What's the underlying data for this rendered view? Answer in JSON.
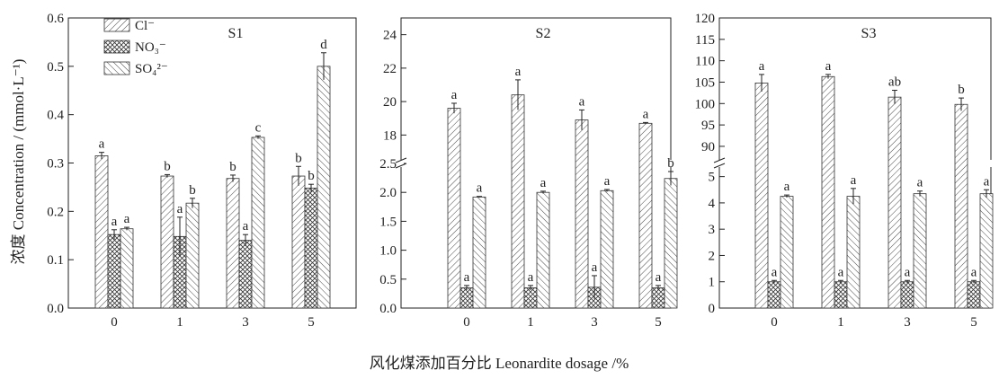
{
  "figure": {
    "ylabel": "浓度 Concentration / (mmol·L⁻¹)",
    "xlabel": "风化煤添加百分比 Leonardite dosage /%",
    "legend": [
      "Cl⁻",
      "NO₃⁻",
      "SO₄²⁻"
    ]
  },
  "chart_data": [
    {
      "type": "bar",
      "title": "S1",
      "categories": [
        "0",
        "1",
        "3",
        "5"
      ],
      "ylim": [
        0,
        0.6
      ],
      "yticks": [
        "0.0",
        "0.1",
        "0.2",
        "0.3",
        "0.4",
        "0.5",
        "0.6"
      ],
      "legend_position": "top-left",
      "series": [
        {
          "name": "Cl⁻",
          "values": [
            0.315,
            0.273,
            0.268,
            0.273
          ],
          "errors": [
            0.007,
            0.003,
            0.007,
            0.02
          ],
          "letters": [
            "a",
            "b",
            "b",
            "b"
          ]
        },
        {
          "name": "NO₃⁻",
          "values": [
            0.152,
            0.148,
            0.14,
            0.248
          ],
          "errors": [
            0.01,
            0.04,
            0.012,
            0.008
          ],
          "letters": [
            "a",
            "a",
            "a",
            "b"
          ]
        },
        {
          "name": "SO₄²⁻",
          "values": [
            0.164,
            0.217,
            0.353,
            0.5
          ],
          "errors": [
            0.003,
            0.01,
            0.003,
            0.028
          ],
          "letters": [
            "a",
            "b",
            "c",
            "d"
          ]
        }
      ]
    },
    {
      "type": "bar",
      "title": "S2",
      "categories": [
        "0",
        "1",
        "3",
        "5"
      ],
      "axis_break": {
        "lower": [
          0,
          2.5
        ],
        "upper": [
          16.3,
          25
        ]
      },
      "yticks_lower": [
        "0.0",
        "0.5",
        "1.0",
        "1.5",
        "2.0",
        "2.5"
      ],
      "yticks_upper": [
        "18",
        "20",
        "22",
        "24"
      ],
      "series": [
        {
          "name": "Cl⁻",
          "values": [
            19.6,
            20.4,
            18.9,
            18.7
          ],
          "errors": [
            0.3,
            0.9,
            0.6,
            0.05
          ],
          "letters": [
            "a",
            "a",
            "a",
            "a"
          ]
        },
        {
          "name": "NO₃⁻",
          "values": [
            0.35,
            0.35,
            0.36,
            0.35
          ],
          "errors": [
            0.04,
            0.04,
            0.2,
            0.04
          ],
          "letters": [
            "a",
            "a",
            "a",
            "a"
          ]
        },
        {
          "name": "SO₄²⁻",
          "values": [
            1.92,
            2.0,
            2.03,
            2.24
          ],
          "errors": [
            0.01,
            0.02,
            0.02,
            0.12
          ],
          "letters": [
            "a",
            "a",
            "a",
            "b"
          ]
        }
      ]
    },
    {
      "type": "bar",
      "title": "S3",
      "categories": [
        "0",
        "1",
        "3",
        "5"
      ],
      "axis_break": {
        "lower": [
          0,
          5.5
        ],
        "upper": [
          86,
          120
        ]
      },
      "yticks_lower": [
        "0",
        "1",
        "2",
        "3",
        "4",
        "5"
      ],
      "yticks_upper": [
        "90",
        "95",
        "100",
        "105",
        "110",
        "115",
        "120"
      ],
      "series": [
        {
          "name": "Cl⁻",
          "values": [
            104.8,
            106.3,
            101.5,
            99.8
          ],
          "errors": [
            2.0,
            0.5,
            1.6,
            1.5
          ],
          "letters": [
            "a",
            "a",
            "ab",
            "b"
          ]
        },
        {
          "name": "NO₃⁻",
          "values": [
            1.0,
            1.0,
            1.0,
            1.0
          ],
          "errors": [
            0.05,
            0.05,
            0.05,
            0.05
          ],
          "letters": [
            "a",
            "a",
            "a",
            "a"
          ]
        },
        {
          "name": "SO₄²⁻",
          "values": [
            4.25,
            4.25,
            4.35,
            4.35
          ],
          "errors": [
            0.05,
            0.3,
            0.1,
            0.15
          ],
          "letters": [
            "a",
            "a",
            "a",
            "a"
          ]
        }
      ]
    }
  ]
}
